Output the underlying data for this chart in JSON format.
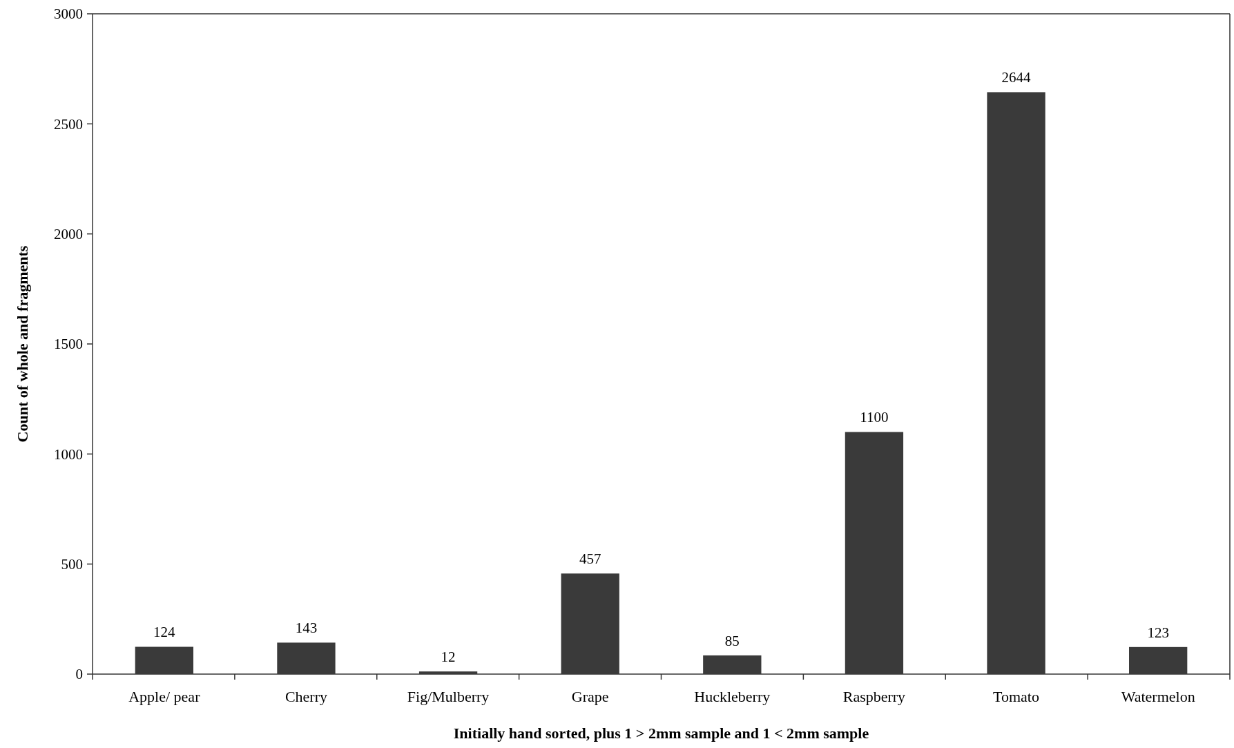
{
  "chart_data": {
    "type": "bar",
    "xlabel": "Initially hand sorted, plus 1 > 2mm sample and 1 < 2mm sample",
    "ylabel": "Count of whole and fragments",
    "categories": [
      "Apple/ pear",
      "Cherry",
      "Fig/Mulberry",
      "Grape",
      "Huckleberry",
      "Raspberry",
      "Tomato",
      "Watermelon"
    ],
    "values": [
      124,
      143,
      12,
      457,
      85,
      1100,
      2644,
      123
    ],
    "color": "#3a3a3a",
    "ylim": [
      0,
      3000
    ],
    "yticks": [
      0,
      500,
      1000,
      1500,
      2000,
      2500,
      3000
    ],
    "grid": false,
    "data_labels": true
  }
}
